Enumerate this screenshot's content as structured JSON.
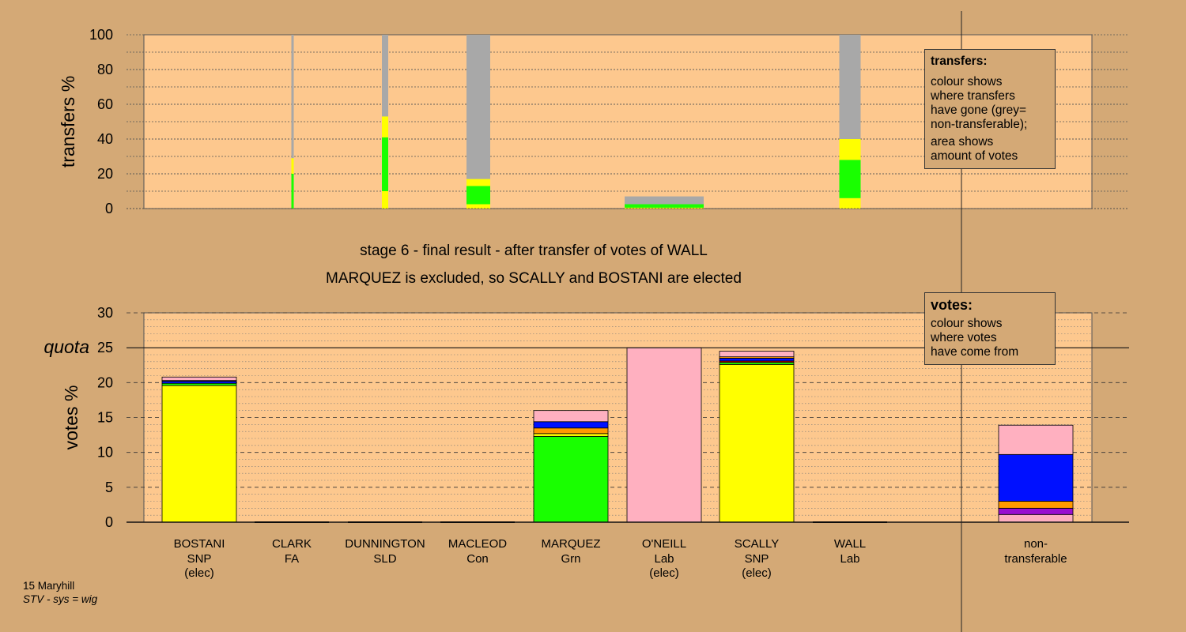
{
  "colors": {
    "page_bg": "#d4a976",
    "plot_bg": "#fdc88e",
    "grey": "#a8a8a8",
    "yellow": "#ffff00",
    "green": "#19ff00",
    "pink": "#ffb0c0",
    "blue": "#0010ff",
    "orange": "#ff9a00",
    "purple": "#9a10d0",
    "red": "#e00000"
  },
  "chart_data": [
    {
      "type": "bar",
      "name": "transfers",
      "ylabel": "transfers %",
      "ylim": [
        0,
        100
      ],
      "yticks": [
        0,
        20,
        40,
        60,
        80,
        100
      ],
      "grid": true,
      "note": "stacked column bars; width proportional to amount of votes transferred",
      "bars": [
        {
          "candidate": "CLARK",
          "width_votes": 0.35,
          "segments": [
            {
              "color": "green",
              "value": 20
            },
            {
              "color": "yellow",
              "value": 9
            },
            {
              "color": "grey",
              "value": 71
            }
          ]
        },
        {
          "candidate": "DUNNINGTON",
          "width_votes": 0.8,
          "segments": [
            {
              "color": "yellow",
              "value": 10
            },
            {
              "color": "green",
              "value": 31
            },
            {
              "color": "yellow",
              "value": 12
            },
            {
              "color": "grey",
              "value": 47
            }
          ]
        },
        {
          "candidate": "MACLEOD",
          "width_votes": 2.6,
          "segments": [
            {
              "color": "yellow",
              "value": 2.5
            },
            {
              "color": "green",
              "value": 10.5
            },
            {
              "color": "yellow",
              "value": 4
            },
            {
              "color": "grey",
              "value": 83
            }
          ]
        },
        {
          "candidate": "O'NEILL",
          "width_votes": 8.5,
          "segments": [
            {
              "color": "yellow",
              "value": 0.5
            },
            {
              "color": "green",
              "value": 2
            },
            {
              "color": "grey",
              "value": 4.5
            }
          ]
        },
        {
          "candidate": "WALL",
          "width_votes": 2.3,
          "segments": [
            {
              "color": "yellow",
              "value": 6
            },
            {
              "color": "green",
              "value": 22
            },
            {
              "color": "yellow",
              "value": 12
            },
            {
              "color": "grey",
              "value": 60
            }
          ]
        }
      ]
    },
    {
      "type": "bar",
      "name": "votes",
      "ylabel": "votes %",
      "ylim": [
        0,
        30
      ],
      "yticks": [
        0,
        5,
        10,
        15,
        20,
        25,
        30
      ],
      "quota": 25,
      "quota_label": "quota",
      "grid": true,
      "categories": [
        {
          "name": "BOSTANI",
          "party": "SNP",
          "status": "(elec)"
        },
        {
          "name": "CLARK",
          "party": "FA",
          "status": ""
        },
        {
          "name": "DUNNINGTON",
          "party": "SLD",
          "status": ""
        },
        {
          "name": "MACLEOD",
          "party": "Con",
          "status": ""
        },
        {
          "name": "MARQUEZ",
          "party": "Grn",
          "status": ""
        },
        {
          "name": "O'NEILL",
          "party": "Lab",
          "status": "(elec)"
        },
        {
          "name": "SCALLY",
          "party": "SNP",
          "status": "(elec)"
        },
        {
          "name": "WALL",
          "party": "Lab",
          "status": ""
        }
      ],
      "nontransferable": {
        "line1": "non-",
        "line2": "transferable"
      },
      "stacks": [
        [
          {
            "color": "yellow",
            "value": 19.6
          },
          {
            "color": "green",
            "value": 0.3
          },
          {
            "color": "blue",
            "value": 0.3
          },
          {
            "color": "orange",
            "value": 0.1
          },
          {
            "color": "pink",
            "value": 0.5
          }
        ],
        [],
        [],
        [],
        [
          {
            "color": "green",
            "value": 12.3
          },
          {
            "color": "yellow",
            "value": 0.4
          },
          {
            "color": "orange",
            "value": 0.8
          },
          {
            "color": "blue",
            "value": 0.9
          },
          {
            "color": "pink",
            "value": 1.6
          }
        ],
        [
          {
            "color": "pink",
            "value": 25.0
          }
        ],
        [
          {
            "color": "yellow",
            "value": 22.6
          },
          {
            "color": "green",
            "value": 0.3
          },
          {
            "color": "red",
            "value": 0.2
          },
          {
            "color": "blue",
            "value": 0.4
          },
          {
            "color": "orange",
            "value": 0.2
          },
          {
            "color": "pink",
            "value": 0.8
          }
        ],
        []
      ],
      "nontransferable_stack": [
        {
          "color": "pink",
          "value": 1.1
        },
        {
          "color": "purple",
          "value": 0.9
        },
        {
          "color": "orange",
          "value": 1.0
        },
        {
          "color": "blue",
          "value": 6.7
        },
        {
          "color": "pink",
          "value": 4.2
        }
      ]
    }
  ],
  "stage_title": "stage 6 - final result - after transfer of votes of WALL",
  "stage_subtitle": "MARQUEZ is excluded, so SCALLY and BOSTANI are elected",
  "legend_transfers": {
    "title": "transfers:",
    "line1": "colour shows",
    "line2": "where transfers",
    "line3": "have gone (grey=",
    "line4": "non-transferable);",
    "line5": "area shows",
    "line6": "amount of votes"
  },
  "legend_votes": {
    "title": "votes:",
    "line1": "colour shows",
    "line2": "where votes",
    "line3": "have come from"
  },
  "footer": {
    "ward": "15 Maryhill",
    "system": "STV - sys = wig"
  }
}
